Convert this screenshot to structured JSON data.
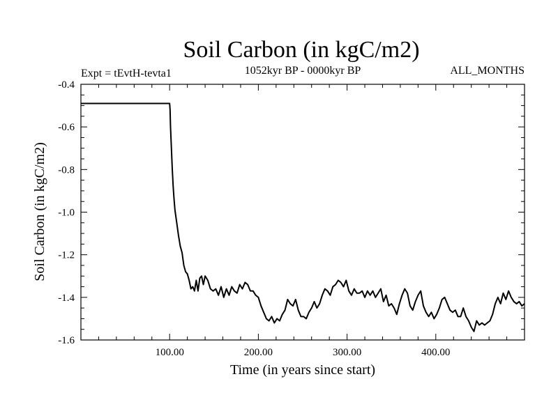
{
  "chart_data": {
    "type": "line",
    "title": "Soil Carbon (in kgC/m2)",
    "subtitle_left": "Expt = tEvtH-tevta1",
    "subtitle_center": "1052kyr BP - 0000kyr BP",
    "subtitle_right": "ALL_MONTHS",
    "xlabel": "Time (in years since start)",
    "ylabel": "Soil Carbon (in kgC/m2)",
    "xlim": [
      0,
      500
    ],
    "ylim": [
      -1.6,
      -0.4
    ],
    "x_ticks": [
      100,
      200,
      300,
      400
    ],
    "x_tick_labels": [
      "100.00",
      "200.00",
      "300.00",
      "400.00"
    ],
    "y_ticks": [
      -0.4,
      -0.6,
      -0.8,
      -1.0,
      -1.2,
      -1.4,
      -1.6
    ],
    "y_tick_labels": [
      "-0.4",
      "-0.6",
      "-0.8",
      "-1.0",
      "-1.2",
      "-1.4",
      "-1.6"
    ],
    "line_color": "#000000",
    "series": [
      {
        "name": "Soil Carbon",
        "x": [
          0,
          100,
          100.5,
          101,
          102,
          103,
          104,
          105,
          106,
          108,
          110,
          112,
          114,
          116,
          118,
          120,
          122,
          124,
          126,
          128,
          130,
          132,
          134,
          136,
          138,
          140,
          143,
          146,
          149,
          152,
          155,
          158,
          161,
          164,
          167,
          170,
          173,
          176,
          179,
          182,
          185,
          188,
          191,
          194,
          197,
          200,
          203,
          206,
          209,
          212,
          215,
          218,
          221,
          224,
          227,
          230,
          233,
          236,
          239,
          242,
          245,
          248,
          251,
          254,
          257,
          260,
          263,
          266,
          269,
          272,
          275,
          278,
          281,
          284,
          287,
          290,
          293,
          296,
          299,
          302,
          305,
          308,
          311,
          314,
          317,
          320,
          323,
          326,
          329,
          332,
          335,
          338,
          341,
          344,
          347,
          350,
          353,
          356,
          359,
          362,
          365,
          368,
          371,
          374,
          377,
          380,
          383,
          386,
          389,
          392,
          395,
          398,
          401,
          404,
          407,
          410,
          413,
          416,
          419,
          422,
          425,
          428,
          431,
          434,
          437,
          440,
          443,
          446,
          449,
          452,
          455,
          458,
          461,
          464,
          467,
          470,
          473,
          476,
          479,
          482,
          485,
          488,
          491,
          494,
          497,
          500
        ],
        "y": [
          -0.49,
          -0.49,
          -0.52,
          -0.6,
          -0.7,
          -0.8,
          -0.88,
          -0.94,
          -0.99,
          -1.05,
          -1.11,
          -1.16,
          -1.19,
          -1.25,
          -1.28,
          -1.29,
          -1.32,
          -1.36,
          -1.35,
          -1.37,
          -1.32,
          -1.37,
          -1.31,
          -1.3,
          -1.34,
          -1.3,
          -1.32,
          -1.36,
          -1.37,
          -1.36,
          -1.39,
          -1.35,
          -1.4,
          -1.36,
          -1.39,
          -1.35,
          -1.37,
          -1.38,
          -1.34,
          -1.36,
          -1.33,
          -1.34,
          -1.37,
          -1.37,
          -1.39,
          -1.4,
          -1.44,
          -1.47,
          -1.5,
          -1.51,
          -1.49,
          -1.52,
          -1.5,
          -1.51,
          -1.48,
          -1.46,
          -1.41,
          -1.43,
          -1.44,
          -1.41,
          -1.46,
          -1.49,
          -1.49,
          -1.5,
          -1.47,
          -1.45,
          -1.42,
          -1.45,
          -1.43,
          -1.39,
          -1.36,
          -1.37,
          -1.39,
          -1.35,
          -1.34,
          -1.32,
          -1.33,
          -1.35,
          -1.32,
          -1.37,
          -1.39,
          -1.36,
          -1.38,
          -1.38,
          -1.37,
          -1.4,
          -1.37,
          -1.39,
          -1.37,
          -1.4,
          -1.38,
          -1.36,
          -1.42,
          -1.39,
          -1.44,
          -1.43,
          -1.45,
          -1.48,
          -1.43,
          -1.39,
          -1.36,
          -1.38,
          -1.44,
          -1.46,
          -1.42,
          -1.39,
          -1.37,
          -1.44,
          -1.47,
          -1.49,
          -1.47,
          -1.5,
          -1.48,
          -1.45,
          -1.41,
          -1.4,
          -1.43,
          -1.46,
          -1.47,
          -1.46,
          -1.49,
          -1.49,
          -1.45,
          -1.49,
          -1.51,
          -1.54,
          -1.56,
          -1.51,
          -1.53,
          -1.52,
          -1.53,
          -1.52,
          -1.51,
          -1.48,
          -1.43,
          -1.4,
          -1.43,
          -1.38,
          -1.41,
          -1.37,
          -1.4,
          -1.42,
          -1.43,
          -1.42,
          -1.44,
          -1.43
        ]
      }
    ]
  }
}
